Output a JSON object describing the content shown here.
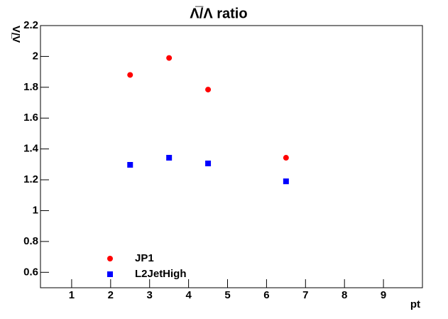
{
  "chart_data": {
    "type": "scatter",
    "title": "Λ̅/Λ ratio",
    "x_label": "pt",
    "y_label": "Λ̅/Λ",
    "xlim": [
      0.2,
      10
    ],
    "xticks": [
      1,
      2,
      3,
      4,
      5,
      6,
      7,
      8,
      9
    ],
    "ylim": [
      0.5,
      2.2
    ],
    "yticks": [
      0.6,
      0.8,
      1,
      1.2,
      1.4,
      1.6,
      1.8,
      2,
      2.2
    ],
    "legend": "bottom-left",
    "series": [
      {
        "name": "JP1",
        "color": "#ff0000",
        "marker": "circle",
        "x": [
          2.5,
          3.5,
          4.5,
          6.5
        ],
        "values": [
          1.88,
          1.99,
          1.785,
          1.343
        ]
      },
      {
        "name": "L2JetHigh",
        "color": "#0000ff",
        "marker": "square",
        "x": [
          2.5,
          3.5,
          4.5,
          6.5
        ],
        "values": [
          1.297,
          1.343,
          1.306,
          1.19
        ]
      }
    ]
  }
}
